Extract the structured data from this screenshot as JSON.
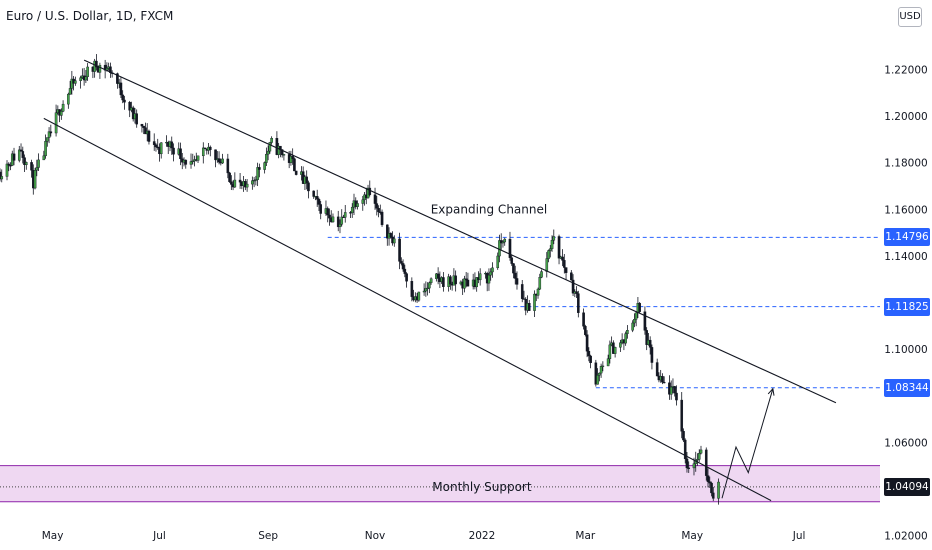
{
  "header": {
    "title": "Euro / U.S. Dollar, 1D, FXCM",
    "currency_button": "USD"
  },
  "price_badges": [
    {
      "label": "1.14796",
      "value": 1.14796,
      "style": "blue"
    },
    {
      "label": "1.11825",
      "value": 1.11825,
      "style": "blue"
    },
    {
      "label": "1.08344",
      "value": 1.08344,
      "style": "blue"
    },
    {
      "label": "1.04094",
      "value": 1.04094,
      "style": "black"
    }
  ],
  "colors": {
    "bull": "#26a69a",
    "bear": "#131722",
    "candle_up_body": "#43a047",
    "line": "#131722",
    "level_line": "#2962ff",
    "support_fill": "#efd8f2",
    "support_border": "#8e24aa",
    "axis_text": "#131722"
  },
  "chart_data": {
    "type": "candlestick",
    "title": "Euro / U.S. Dollar, 1D, FXCM",
    "x_tick_labels": [
      "May",
      "Jul",
      "Sep",
      "Nov",
      "2022",
      "Mar",
      "May",
      "Jul"
    ],
    "y_tick_labels": [
      "1.22000",
      "1.20000",
      "1.18000",
      "1.16000",
      "1.14000",
      "1.10000",
      "1.06000",
      "1.02000"
    ],
    "y_ticks": [
      1.22,
      1.2,
      1.18,
      1.16,
      1.14,
      1.1,
      1.06,
      1.02
    ],
    "ylim": [
      1.0138,
      1.2498
    ],
    "x_range": [
      "2021-04-01",
      "2022-08-15"
    ],
    "price_path": [
      [
        "2021-04-01",
        1.176
      ],
      [
        "2021-04-13",
        1.186
      ],
      [
        "2021-04-20",
        1.172
      ],
      [
        "2021-05-05",
        1.203
      ],
      [
        "2021-05-12",
        1.213
      ],
      [
        "2021-05-26",
        1.222
      ],
      [
        "2021-06-03",
        1.22
      ],
      [
        "2021-06-18",
        1.197
      ],
      [
        "2021-06-30",
        1.186
      ],
      [
        "2021-07-07",
        1.188
      ],
      [
        "2021-07-20",
        1.178
      ],
      [
        "2021-07-30",
        1.187
      ],
      [
        "2021-08-11",
        1.173
      ],
      [
        "2021-08-20",
        1.168
      ],
      [
        "2021-09-03",
        1.188
      ],
      [
        "2021-09-15",
        1.18
      ],
      [
        "2021-09-29",
        1.162
      ],
      [
        "2021-10-12",
        1.154
      ],
      [
        "2021-10-21",
        1.164
      ],
      [
        "2021-10-28",
        1.168
      ],
      [
        "2021-11-04",
        1.156
      ],
      [
        "2021-11-12",
        1.145
      ],
      [
        "2021-11-24",
        1.121
      ],
      [
        "2021-12-06",
        1.13
      ],
      [
        "2021-12-20",
        1.128
      ],
      [
        "2022-01-05",
        1.131
      ],
      [
        "2022-01-13",
        1.148
      ],
      [
        "2022-01-20",
        1.13
      ],
      [
        "2022-01-28",
        1.115
      ],
      [
        "2022-02-08",
        1.142
      ],
      [
        "2022-02-10",
        1.148
      ],
      [
        "2022-02-23",
        1.125
      ],
      [
        "2022-03-07",
        1.085
      ],
      [
        "2022-03-15",
        1.1
      ],
      [
        "2022-03-23",
        1.103
      ],
      [
        "2022-03-31",
        1.118
      ],
      [
        "2022-04-11",
        1.087
      ],
      [
        "2022-04-22",
        1.08
      ],
      [
        "2022-04-28",
        1.05
      ],
      [
        "2022-05-06",
        1.054
      ],
      [
        "2022-05-13",
        1.038
      ],
      [
        "2022-05-16",
        1.0409
      ]
    ],
    "channel_lines": [
      {
        "from": [
          "2021-05-19",
          1.224
        ],
        "to": [
          "2022-07-22",
          1.077
        ]
      },
      {
        "from": [
          "2021-04-26",
          1.199
        ],
        "to": [
          "2022-06-15",
          1.035
        ]
      }
    ],
    "horizontal_levels": [
      {
        "value": 1.14796,
        "from": "2021-10-05"
      },
      {
        "value": 1.11825,
        "from": "2021-11-24"
      },
      {
        "value": 1.08344,
        "from": "2022-03-07"
      }
    ],
    "support_zone": {
      "label": "Monthly Support",
      "top": 1.05,
      "bottom": 1.0345,
      "mid": 1.0409
    },
    "projection_path": [
      [
        "2022-05-18",
        1.036
      ],
      [
        "2022-05-26",
        1.058
      ],
      [
        "2022-06-02",
        1.047
      ],
      [
        "2022-06-16",
        1.083
      ]
    ],
    "annotations": [
      {
        "text": "Expanding Channel",
        "at": [
          "2022-01-05",
          1.16
        ]
      },
      {
        "text": "Monthly Support",
        "at": [
          "2022-01-01",
          1.0409
        ]
      }
    ]
  }
}
